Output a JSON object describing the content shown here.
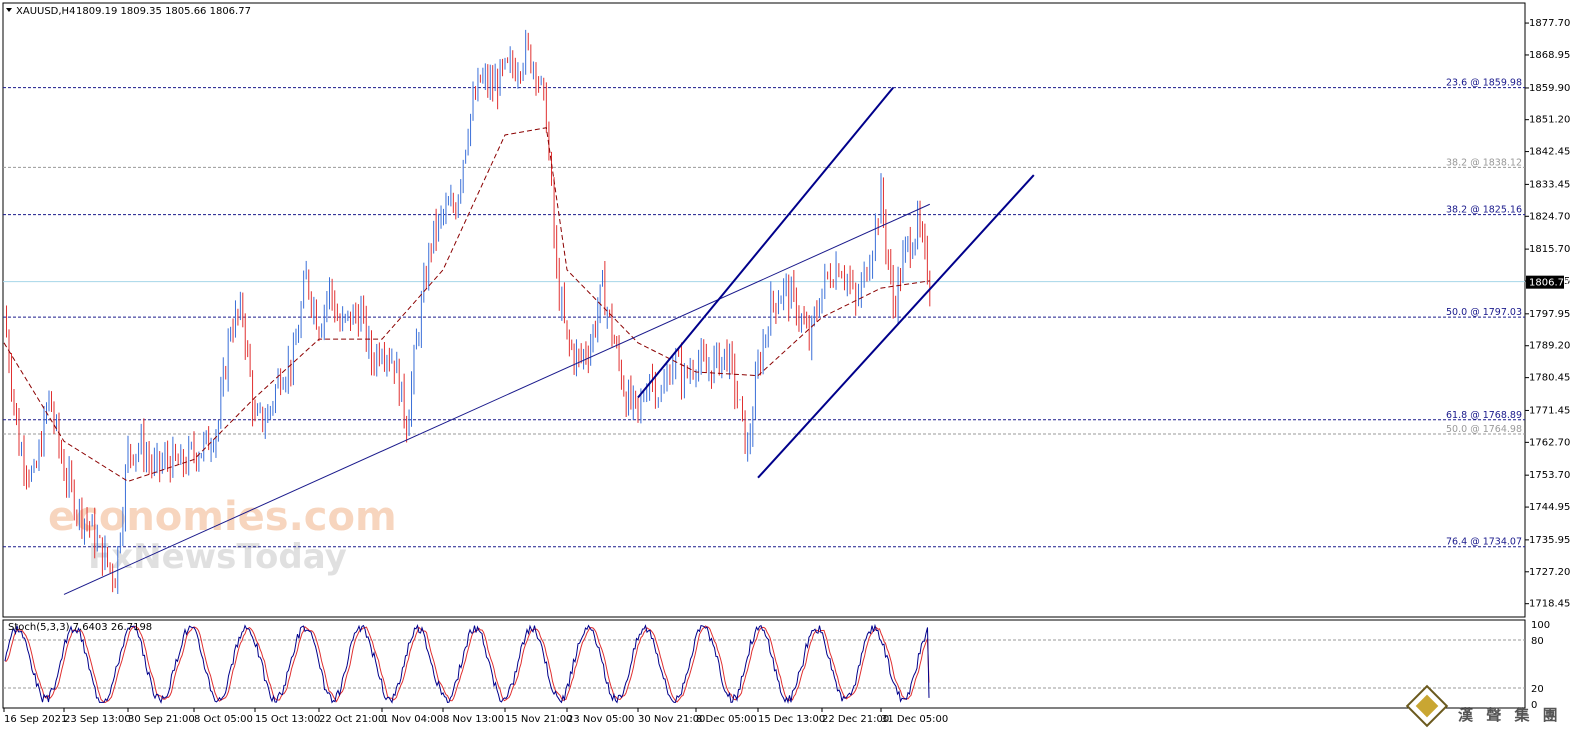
{
  "header": {
    "symbol": "XAUUSD,H4",
    "ohlc": "1809.19 1809.35 1805.66 1806.77"
  },
  "chart_data": [
    {
      "type": "line",
      "name": "price-panel",
      "symbol": "XAUUSD,H4",
      "ylim": [
        1714.8,
        1883.2
      ],
      "y_ticks": [
        "1877.70",
        "1868.95",
        "1859.90",
        "1851.20",
        "1842.45",
        "1833.45",
        "1824.70",
        "1815.70",
        "1806.95",
        "1797.95",
        "1789.20",
        "1780.45",
        "1771.45",
        "1762.70",
        "1753.70",
        "1744.95",
        "1735.95",
        "1727.20",
        "1718.45"
      ],
      "current_price": "1806.77",
      "x_ticks": [
        "16 Sep 2021",
        "23 Sep 13:00",
        "30 Sep 21:00",
        "8 Oct 05:00",
        "15 Oct 13:00",
        "22 Oct 21:00",
        "1 Nov 04:00",
        "8 Nov 13:00",
        "15 Nov 21:00",
        "23 Nov 05:00",
        "30 Nov 21:00",
        "8 Dec 05:00",
        "15 Dec 13:00",
        "22 Dec 21:00",
        "31 Dec 05:00"
      ],
      "close_path": [
        {
          "t": "16 Sep 2021",
          "close": 1798
        },
        {
          "t": "17 Sep",
          "close": 1762
        },
        {
          "t": "20 Sep",
          "close": 1752
        },
        {
          "t": "22 Sep",
          "close": 1775
        },
        {
          "t": "23 Sep 13:00",
          "close": 1755
        },
        {
          "t": "24 Sep",
          "close": 1745
        },
        {
          "t": "27 Sep",
          "close": 1740
        },
        {
          "t": "28 Sep",
          "close": 1732
        },
        {
          "t": "29 Sep",
          "close": 1726
        },
        {
          "t": "30 Sep 21:00",
          "close": 1760
        },
        {
          "t": "1 Oct",
          "close": 1762
        },
        {
          "t": "5 Oct",
          "close": 1755
        },
        {
          "t": "6 Oct",
          "close": 1758
        },
        {
          "t": "7 Oct",
          "close": 1756
        },
        {
          "t": "8 Oct 05:00",
          "close": 1760
        },
        {
          "t": "11 Oct",
          "close": 1762
        },
        {
          "t": "12 Oct",
          "close": 1768
        },
        {
          "t": "13 Oct",
          "close": 1795
        },
        {
          "t": "14 Oct",
          "close": 1798
        },
        {
          "t": "15 Oct 13:00",
          "close": 1768
        },
        {
          "t": "18 Oct",
          "close": 1770
        },
        {
          "t": "19 Oct",
          "close": 1782
        },
        {
          "t": "20 Oct",
          "close": 1785
        },
        {
          "t": "21 Oct",
          "close": 1808
        },
        {
          "t": "22 Oct 21:00",
          "close": 1795
        },
        {
          "t": "25 Oct",
          "close": 1805
        },
        {
          "t": "26 Oct",
          "close": 1794
        },
        {
          "t": "27 Oct",
          "close": 1797
        },
        {
          "t": "28 Oct",
          "close": 1798
        },
        {
          "t": "29 Oct",
          "close": 1785
        },
        {
          "t": "1 Nov 04:00",
          "close": 1790
        },
        {
          "t": "2 Nov",
          "close": 1785
        },
        {
          "t": "3 Nov",
          "close": 1768
        },
        {
          "t": "4 Nov",
          "close": 1795
        },
        {
          "t": "5 Nov",
          "close": 1818
        },
        {
          "t": "8 Nov",
          "close": 1825
        },
        {
          "t": "9 Nov",
          "close": 1828
        },
        {
          "t": "10 Nov",
          "close": 1850
        },
        {
          "t": "11 Nov",
          "close": 1862
        },
        {
          "t": "12 Nov",
          "close": 1860
        },
        {
          "t": "15 Nov 21:00",
          "close": 1864
        },
        {
          "t": "16 Nov",
          "close": 1866
        },
        {
          "t": "17 Nov",
          "close": 1870
        },
        {
          "t": "18 Nov",
          "close": 1866
        },
        {
          "t": "19 Nov",
          "close": 1852
        },
        {
          "t": "22 Nov",
          "close": 1808
        },
        {
          "t": "23 Nov 05:00",
          "close": 1790
        },
        {
          "t": "24 Nov",
          "close": 1785
        },
        {
          "t": "25 Nov",
          "close": 1790
        },
        {
          "t": "26 Nov",
          "close": 1805
        },
        {
          "t": "29 Nov",
          "close": 1790
        },
        {
          "t": "30 Nov",
          "close": 1775
        },
        {
          "t": "30 Nov 21:00",
          "close": 1770
        },
        {
          "t": "1 Dec",
          "close": 1782
        },
        {
          "t": "2 Dec",
          "close": 1775
        },
        {
          "t": "3 Dec",
          "close": 1786
        },
        {
          "t": "6 Dec",
          "close": 1780
        },
        {
          "t": "8 Dec 05:00",
          "close": 1786
        },
        {
          "t": "9 Dec",
          "close": 1782
        },
        {
          "t": "10 Dec",
          "close": 1785
        },
        {
          "t": "13 Dec",
          "close": 1787
        },
        {
          "t": "14 Dec",
          "close": 1775
        },
        {
          "t": "15 Dec",
          "close": 1760
        },
        {
          "t": "15 Dec 13:00",
          "close": 1783
        },
        {
          "t": "16 Dec",
          "close": 1800
        },
        {
          "t": "17 Dec",
          "close": 1805
        },
        {
          "t": "20 Dec",
          "close": 1800
        },
        {
          "t": "21 Dec",
          "close": 1790
        },
        {
          "t": "22 Dec 21:00",
          "close": 1805
        },
        {
          "t": "23 Dec",
          "close": 1809
        },
        {
          "t": "24 Dec",
          "close": 1812
        },
        {
          "t": "27 Dec",
          "close": 1808
        },
        {
          "t": "28 Dec",
          "close": 1800
        },
        {
          "t": "29 Dec",
          "close": 1808
        },
        {
          "t": "30 Dec",
          "close": 1818
        },
        {
          "t": "31 Dec 05:00",
          "close": 1830
        },
        {
          "t": "3 Jan",
          "close": 1800
        },
        {
          "t": "4 Jan",
          "close": 1815
        },
        {
          "t": "5 Jan",
          "close": 1822
        },
        {
          "t": "6 Jan",
          "close": 1806.77
        }
      ],
      "moving_average": [
        {
          "t": "16 Sep 2021",
          "value": 1790
        },
        {
          "t": "23 Sep 13:00",
          "value": 1763
        },
        {
          "t": "30 Sep 21:00",
          "value": 1752
        },
        {
          "t": "8 Oct 05:00",
          "value": 1758
        },
        {
          "t": "15 Oct 13:00",
          "value": 1775
        },
        {
          "t": "22 Oct 21:00",
          "value": 1791
        },
        {
          "t": "1 Nov 04:00",
          "value": 1791
        },
        {
          "t": "8 Nov 13:00",
          "value": 1810
        },
        {
          "t": "15 Nov 21:00",
          "value": 1847
        },
        {
          "t": "19 Nov",
          "value": 1849
        },
        {
          "t": "23 Nov 05:00",
          "value": 1810
        },
        {
          "t": "30 Nov 21:00",
          "value": 1790
        },
        {
          "t": "8 Dec 05:00",
          "value": 1782
        },
        {
          "t": "15 Dec 13:00",
          "value": 1781
        },
        {
          "t": "22 Dec 21:00",
          "value": 1797
        },
        {
          "t": "31 Dec 05:00",
          "value": 1805
        },
        {
          "t": "6 Jan",
          "value": 1807
        }
      ],
      "fibonacci_levels": [
        {
          "label": "23.6 @ 1859.98",
          "price": 1859.98,
          "color": "#1a1a8c",
          "style": "dashed"
        },
        {
          "label": "38.2 @ 1838.12",
          "price": 1838.12,
          "color": "#9a9a9a",
          "style": "dashed"
        },
        {
          "label": "38.2 @ 1825.16",
          "price": 1825.16,
          "color": "#1a1a8c",
          "style": "dashed"
        },
        {
          "label": "50.0 @ 1797.03",
          "price": 1797.03,
          "color": "#1a1a8c",
          "style": "dashed"
        },
        {
          "label": "61.8 @ 1768.89",
          "price": 1768.89,
          "color": "#1a1a8c",
          "style": "dashed"
        },
        {
          "label": "50.0 @ 1764.98",
          "price": 1764.98,
          "color": "#9a9a9a",
          "style": "dashed"
        },
        {
          "label": "76.4 @ 1734.07",
          "price": 1734.07,
          "color": "#1a1a8c",
          "style": "dashed"
        }
      ],
      "trendlines": [
        {
          "name": "long-support",
          "from": {
            "t": "23 Sep 13:00",
            "price": 1721
          },
          "to": {
            "t": "6 Jan",
            "price": 1828
          },
          "color": "#1a1a8c"
        },
        {
          "name": "channel-upper",
          "from": {
            "t": "30 Nov 21:00",
            "price": 1775
          },
          "to": {
            "t": "3 Jan",
            "price": 1860
          },
          "color": "#00008b"
        },
        {
          "name": "channel-lower",
          "from": {
            "t": "15 Dec 13:00",
            "price": 1753
          },
          "to": {
            "t": "10 Jan",
            "price": 1836
          },
          "color": "#00008b"
        }
      ],
      "colors": {
        "up": "#3a6fd8",
        "down": "#e03030",
        "ma": "#8b0000",
        "price_line": "#a6d6e8"
      }
    },
    {
      "type": "line",
      "name": "stochastic-panel",
      "title": "Stoch(5,3,3) 7.6403 26.7198",
      "ylim": [
        0,
        100
      ],
      "y_ticks": [
        "100",
        "80",
        "20",
        "0"
      ],
      "levels": [
        80,
        20
      ],
      "series": [
        {
          "name": "main",
          "color": "#00008b"
        },
        {
          "name": "signal",
          "color": "#e03030"
        }
      ],
      "last_values": {
        "main": 7.6403,
        "signal": 26.7198
      }
    }
  ],
  "watermark": {
    "line1": "economies.com",
    "line2": "FxNewsToday"
  },
  "logo": {
    "text": "漢 聲 集 團"
  }
}
